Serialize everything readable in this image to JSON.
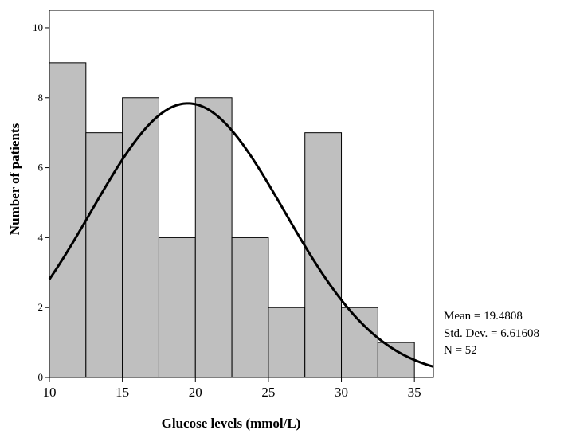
{
  "chart_data": {
    "type": "bar",
    "subtype": "histogram",
    "title": "",
    "xlabel": "Glucose levels (mmol/L)",
    "ylabel": "Number of patients",
    "xlim": [
      10,
      36.3
    ],
    "ylim": [
      0,
      10.5
    ],
    "x_ticks": [
      10,
      15,
      20,
      25,
      30,
      35
    ],
    "y_ticks": [
      0,
      2,
      4,
      6,
      8,
      10
    ],
    "bin_width": 2.5,
    "bins": [
      {
        "start": 10.0,
        "end": 12.5,
        "count": 9
      },
      {
        "start": 12.5,
        "end": 15.0,
        "count": 7
      },
      {
        "start": 15.0,
        "end": 17.5,
        "count": 8
      },
      {
        "start": 17.5,
        "end": 20.0,
        "count": 4
      },
      {
        "start": 20.0,
        "end": 22.5,
        "count": 8
      },
      {
        "start": 22.5,
        "end": 25.0,
        "count": 4
      },
      {
        "start": 25.0,
        "end": 27.5,
        "count": 2
      },
      {
        "start": 27.5,
        "end": 30.0,
        "count": 7
      },
      {
        "start": 30.0,
        "end": 32.5,
        "count": 2
      },
      {
        "start": 32.5,
        "end": 35.0,
        "count": 1
      }
    ],
    "normal_curve": {
      "mean": 19.4808,
      "sd": 6.61608,
      "n": 52
    },
    "grid": false,
    "legend": "none",
    "colors": {
      "bar_fill": "#bfbfbf",
      "bar_stroke": "#000000",
      "curve": "#000000",
      "frame": "#000000"
    },
    "stats_text": [
      "Mean = 19.4808",
      "Std. Dev. = 6.61608",
      "N = 52"
    ]
  }
}
